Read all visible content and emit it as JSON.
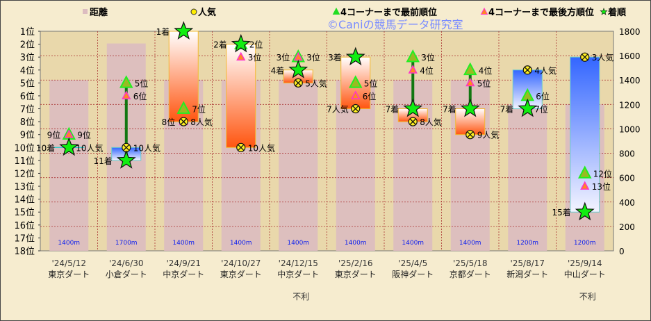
{
  "chart_data": {
    "type": "bar",
    "title": "",
    "legend": {
      "placement": "top",
      "entries": [
        {
          "key": "distance",
          "label": "距離",
          "color": "#dcbcc0",
          "marker": "square"
        },
        {
          "key": "popularity",
          "label": "人気",
          "color": "#ffee00",
          "marker": "crossed-circle"
        },
        {
          "key": "first",
          "label": "4コーナーまで最前順位",
          "color": "#22dd22",
          "marker": "triangle"
        },
        {
          "key": "last",
          "label": "4コーナーまで最後方順位",
          "color": "#ff33cc",
          "marker": "triangle"
        },
        {
          "key": "finish",
          "label": "着順",
          "color": "#00ee00",
          "marker": "star"
        }
      ]
    },
    "left_axis": {
      "ticks": [
        "1位",
        "2位",
        "3位",
        "4位",
        "5位",
        "6位",
        "7位",
        "8位",
        "9位",
        "10位",
        "11位",
        "12位",
        "13位",
        "14位",
        "15位",
        "16位",
        "17位",
        "18位"
      ],
      "range": [
        1,
        18
      ],
      "inverted": true
    },
    "right_axis": {
      "ticks": [
        "0",
        "200",
        "400",
        "600",
        "800",
        "1000",
        "1200",
        "1400",
        "1600",
        "1800"
      ],
      "range": [
        0,
        1800
      ]
    },
    "grid": true,
    "watermark": "©Caniの競馬データ研究室",
    "races": [
      {
        "date": "'24/5/12",
        "course": "東京ダート",
        "distance": 1400,
        "distance_label": "1400m",
        "finish": 10,
        "finish_label": "10着",
        "popularity": 10,
        "pop_label": "10人気",
        "first": 9,
        "first_label": "9位",
        "last": 9,
        "last_label": "9位",
        "drop_line": false,
        "note": ""
      },
      {
        "date": "'24/6/30",
        "course": "小倉ダート",
        "distance": 1700,
        "distance_label": "1700m",
        "finish": 11,
        "finish_label": "11着",
        "popularity": 10,
        "pop_label": "10人気",
        "first": 5,
        "first_label": "5位",
        "last": 6,
        "last_label": "6位",
        "drop_line": true,
        "note": ""
      },
      {
        "date": "'24/9/21",
        "course": "中京ダート",
        "distance": 1400,
        "distance_label": "1400m",
        "finish": 1,
        "finish_label": "1着",
        "popularity": 8,
        "pop_label": "8人気",
        "first": 7,
        "first_label": "7位",
        "last": 8,
        "last_label": "8位",
        "drop_line": false,
        "note": ""
      },
      {
        "date": "'24/10/27",
        "course": "東京ダート",
        "distance": 1400,
        "distance_label": "1400m",
        "finish": 2,
        "finish_label": "2着",
        "popularity": 10,
        "pop_label": "10人気",
        "first": 2,
        "first_label": "2位",
        "last": 3,
        "last_label": "3位",
        "drop_line": false,
        "note": ""
      },
      {
        "date": "'24/12/15",
        "course": "中京ダート",
        "distance": 1400,
        "distance_label": "1400m",
        "finish": 4,
        "finish_label": "4着",
        "popularity": 5,
        "pop_label": "5人気",
        "first": 3,
        "first_label": "3位",
        "last": 3,
        "last_label": "3位",
        "drop_line": false,
        "note": "不利"
      },
      {
        "date": "'25/2/16",
        "course": "東京ダート",
        "distance": 1400,
        "distance_label": "1400m",
        "finish": 3,
        "finish_label": "3着",
        "popularity": 7,
        "pop_label": "7人気",
        "first": 5,
        "first_label": "5位",
        "last": 6,
        "last_label": "6位",
        "drop_line": false,
        "note": ""
      },
      {
        "date": "'25/4/5",
        "course": "阪神ダート",
        "distance": 1400,
        "distance_label": "1400m",
        "finish": 7,
        "finish_label": "7着",
        "popularity": 8,
        "pop_label": "8人気",
        "first": 3,
        "first_label": "3位",
        "last": 4,
        "last_label": "4位",
        "drop_line": true,
        "note": ""
      },
      {
        "date": "'25/5/18",
        "course": "京都ダート",
        "distance": 1400,
        "distance_label": "1400m",
        "finish": 7,
        "finish_label": "7着",
        "popularity": 9,
        "pop_label": "9人気",
        "first": 4,
        "first_label": "4位",
        "last": 5,
        "last_label": "5位",
        "drop_line": true,
        "note": ""
      },
      {
        "date": "'25/8/17",
        "course": "新潟ダート",
        "distance": 1200,
        "distance_label": "1200m",
        "finish": 7,
        "finish_label": "7着",
        "popularity": 4,
        "pop_label": "4人気",
        "first": 6,
        "first_label": "6位",
        "last": 7,
        "last_label": "7位",
        "drop_line": true,
        "note": ""
      },
      {
        "date": "'25/9/14",
        "course": "中山ダート",
        "distance": 1200,
        "distance_label": "1200m",
        "finish": 15,
        "finish_label": "15着",
        "popularity": 3,
        "pop_label": "3人気",
        "first": 12,
        "first_label": "12位",
        "last": 13,
        "last_label": "13位",
        "drop_line": false,
        "note": "不利"
      }
    ]
  }
}
